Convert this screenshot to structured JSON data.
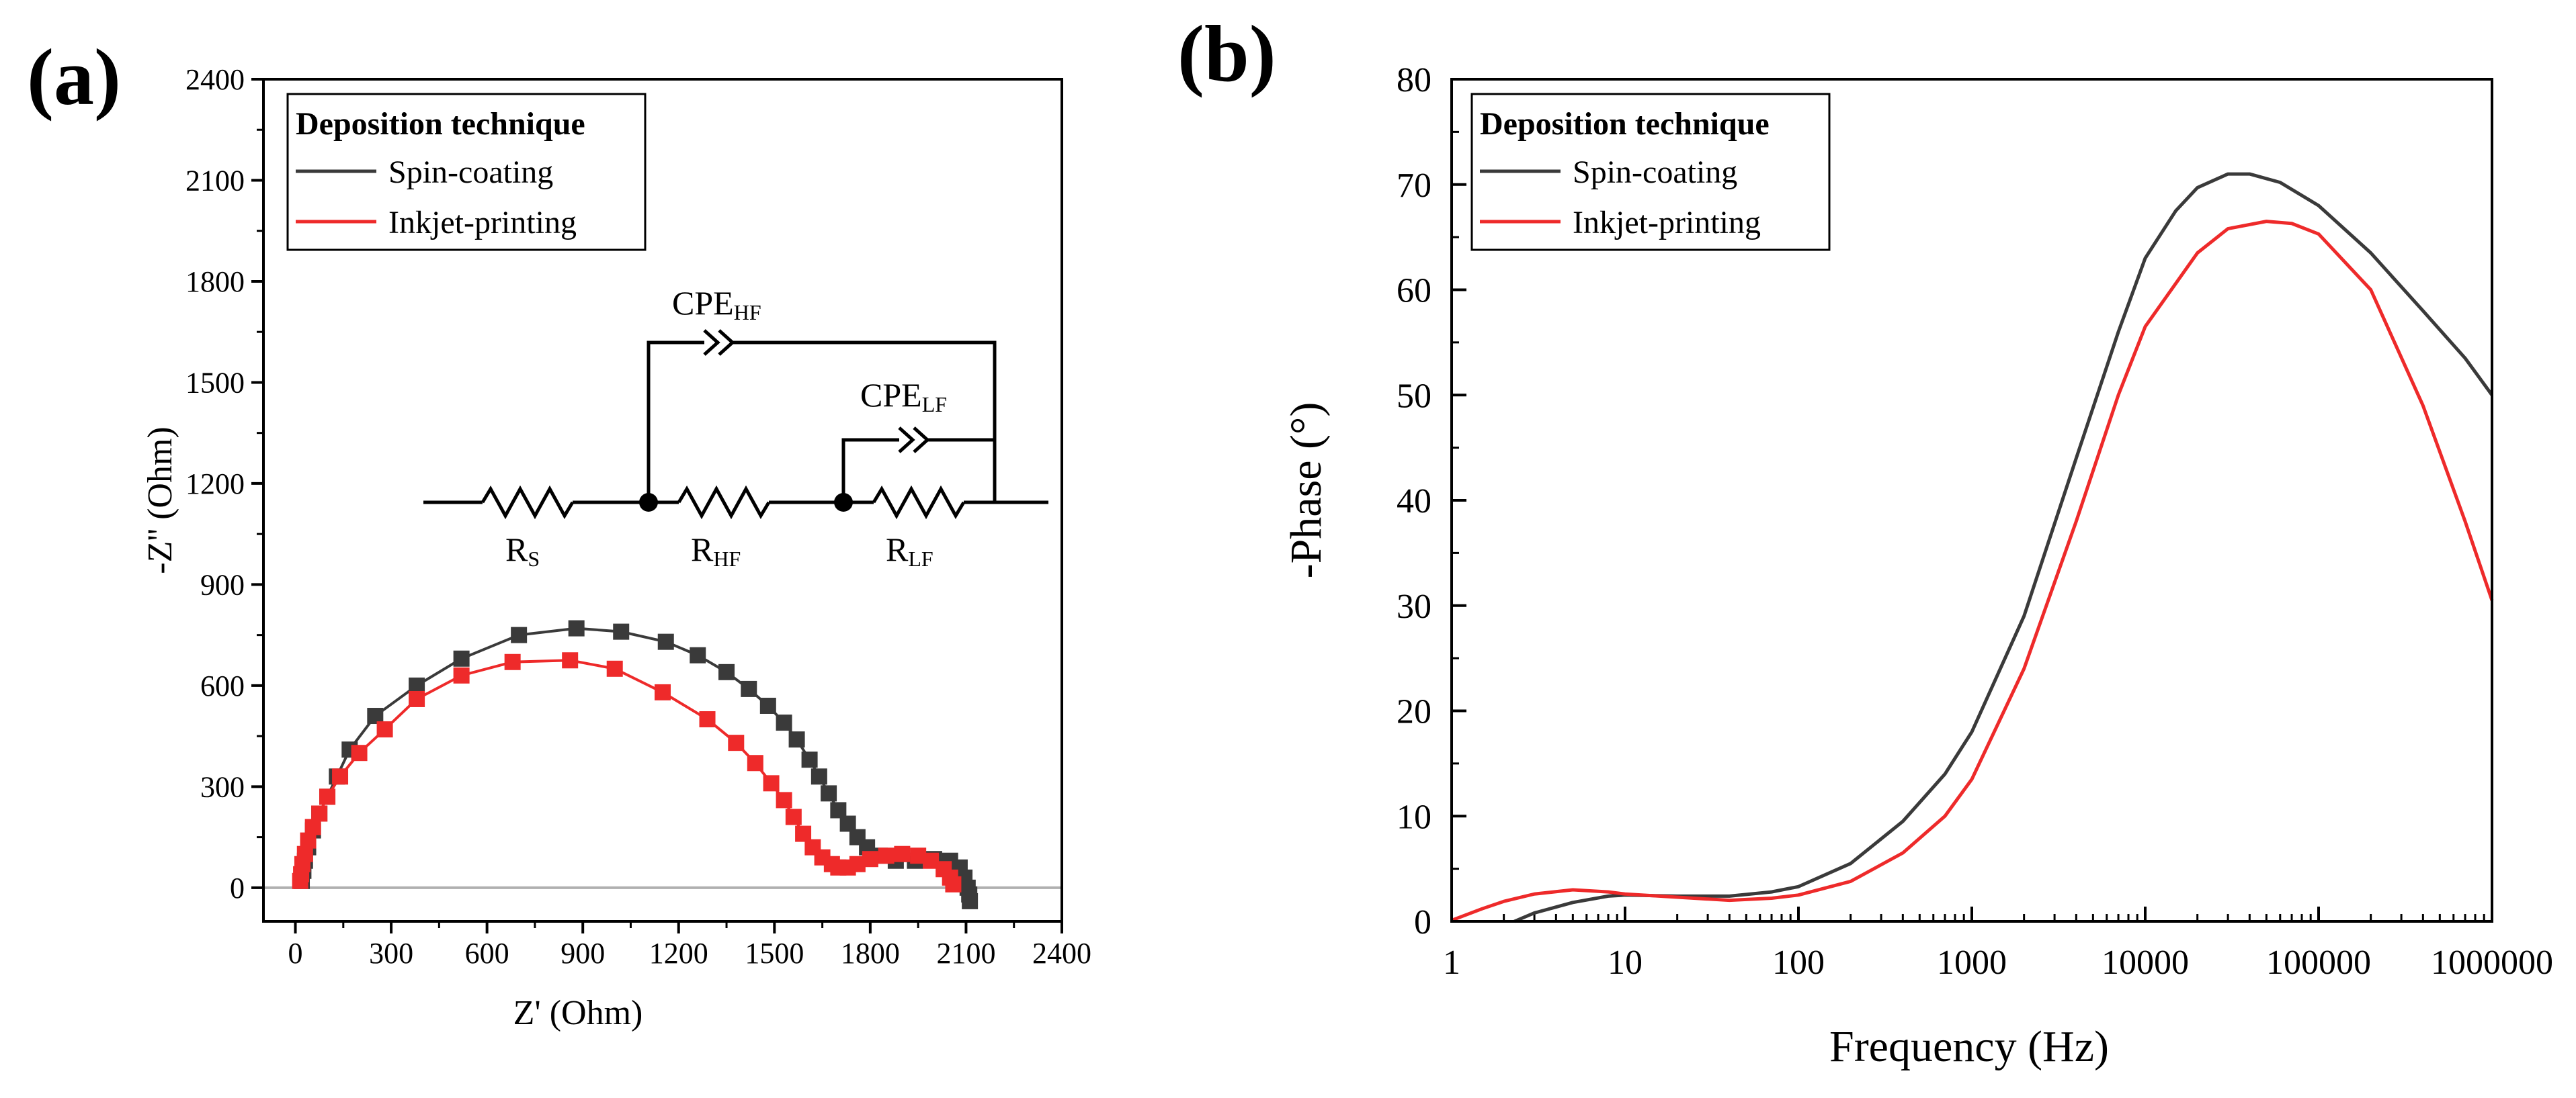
{
  "panels": {
    "a": "(a)",
    "b": "(b)"
  },
  "colors": {
    "spin": "#3a3a3a",
    "inkjet": "#ee2a2a",
    "frame": "#000000",
    "baseline": "#b0b0b0"
  },
  "circuit": {
    "rs": {
      "main": "R",
      "sub": "S"
    },
    "rhf": {
      "main": "R",
      "sub": "HF"
    },
    "rlf": {
      "main": "R",
      "sub": "LF"
    },
    "cpehf": {
      "main": "CPE",
      "sub": "HF"
    },
    "cpelf": {
      "main": "CPE",
      "sub": "LF"
    }
  },
  "chart_data": [
    {
      "type": "scatter",
      "panel": "(a)",
      "title": "",
      "xlabel": "Z' (Ohm)",
      "ylabel": "-Z'' (Ohm)",
      "xlim": [
        -100,
        2400
      ],
      "ylim": [
        -100,
        2400
      ],
      "xticks": [
        0,
        300,
        600,
        900,
        1200,
        1500,
        1800,
        2100,
        2400
      ],
      "yticks": [
        0,
        300,
        600,
        900,
        1200,
        1500,
        1800,
        2100,
        2400
      ],
      "legend": {
        "title": "Deposition technique",
        "position": "top-left"
      },
      "series": [
        {
          "name": "Spin-coating",
          "color": "#3a3a3a",
          "x": [
            20,
            25,
            30,
            40,
            55,
            75,
            100,
            130,
            170,
            250,
            380,
            520,
            700,
            880,
            1020,
            1160,
            1260,
            1350,
            1420,
            1480,
            1530,
            1570,
            1610,
            1640,
            1670,
            1700,
            1730,
            1760,
            1790,
            1830,
            1880,
            1940,
            2000,
            2050,
            2080,
            2095,
            2105,
            2110,
            2112
          ],
          "y": [
            20,
            50,
            80,
            120,
            170,
            220,
            270,
            330,
            410,
            510,
            600,
            680,
            750,
            770,
            760,
            730,
            690,
            640,
            590,
            540,
            490,
            440,
            380,
            330,
            280,
            230,
            190,
            150,
            120,
            95,
            80,
            80,
            85,
            80,
            60,
            30,
            0,
            -20,
            -40
          ]
        },
        {
          "name": "Inkjet-printing",
          "color": "#ee2a2a",
          "x": [
            15,
            18,
            22,
            30,
            40,
            55,
            75,
            100,
            140,
            200,
            280,
            380,
            520,
            680,
            860,
            1000,
            1150,
            1290,
            1380,
            1440,
            1490,
            1530,
            1560,
            1590,
            1620,
            1650,
            1680,
            1700,
            1730,
            1760,
            1800,
            1850,
            1900,
            1950,
            1990,
            2030,
            2050,
            2060
          ],
          "y": [
            20,
            40,
            70,
            100,
            140,
            180,
            220,
            270,
            330,
            400,
            470,
            560,
            630,
            670,
            675,
            650,
            580,
            500,
            430,
            370,
            310,
            260,
            210,
            160,
            120,
            90,
            70,
            60,
            60,
            70,
            85,
            95,
            100,
            95,
            80,
            55,
            30,
            10
          ]
        }
      ]
    },
    {
      "type": "line",
      "panel": "(b)",
      "title": "",
      "xlabel": "Frequency (Hz)",
      "ylabel": "-Phase (°)",
      "xscale": "log",
      "xlim": [
        1,
        1000000
      ],
      "ylim": [
        0,
        80
      ],
      "xticks": [
        1,
        10,
        100,
        1000,
        10000,
        100000,
        1000000
      ],
      "xtick_labels": [
        "1",
        "10",
        "100",
        "1000",
        "10000",
        "100000",
        "1000000"
      ],
      "yticks": [
        0,
        10,
        20,
        30,
        40,
        50,
        60,
        70,
        80
      ],
      "legend": {
        "title": "Deposition technique",
        "position": "top-left"
      },
      "series": [
        {
          "name": "Spin-coating",
          "color": "#3a3a3a",
          "x": [
            2.3,
            3,
            5,
            8,
            10,
            20,
            40,
            70,
            100,
            200,
            400,
            700,
            1000,
            2000,
            4000,
            7000,
            10000,
            15000,
            20000,
            30000,
            40000,
            60000,
            100000,
            200000,
            400000,
            700000,
            1000000
          ],
          "y": [
            0,
            0.8,
            1.8,
            2.4,
            2.5,
            2.4,
            2.4,
            2.8,
            3.3,
            5.5,
            9.5,
            14,
            18,
            29,
            44,
            56,
            63,
            67.5,
            69.7,
            71,
            71,
            70.2,
            68,
            63.5,
            58,
            53.5,
            50
          ]
        },
        {
          "name": "Inkjet-printing",
          "color": "#ee2a2a",
          "x": [
            1,
            1.5,
            2,
            3,
            5,
            8,
            10,
            20,
            40,
            70,
            100,
            200,
            400,
            700,
            1000,
            2000,
            4000,
            7000,
            10000,
            20000,
            30000,
            50000,
            70000,
            100000,
            200000,
            400000,
            700000,
            1000000
          ],
          "y": [
            0.1,
            1.2,
            1.9,
            2.6,
            3,
            2.8,
            2.6,
            2.3,
            2,
            2.2,
            2.5,
            3.8,
            6.5,
            10,
            13.5,
            24,
            38,
            50,
            56.5,
            63.5,
            65.8,
            66.5,
            66.3,
            65.3,
            60,
            49,
            38,
            30.5
          ]
        }
      ]
    }
  ]
}
